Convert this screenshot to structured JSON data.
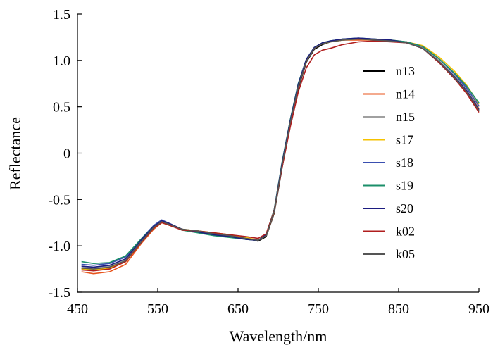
{
  "chart_data": {
    "type": "line",
    "title": "",
    "xlabel": "Wavelength/nm",
    "ylabel": "Reflectance",
    "xlim": [
      450,
      950
    ],
    "ylim": [
      -1.5,
      1.5
    ],
    "xticks": [
      450,
      550,
      650,
      750,
      850,
      950
    ],
    "yticks": [
      -1.5,
      -1.0,
      -0.5,
      0,
      0.5,
      1.0,
      1.5
    ],
    "xtick_labels": [
      "450",
      "550",
      "650",
      "750",
      "850",
      "950"
    ],
    "ytick_labels": [
      "-1.5",
      "-1.0",
      "-0.5",
      "0",
      "0.5",
      "1.0",
      "1.5"
    ],
    "grid": false,
    "legend_position": "right",
    "x": [
      455,
      470,
      490,
      510,
      530,
      545,
      555,
      565,
      580,
      600,
      620,
      640,
      660,
      675,
      685,
      695,
      705,
      715,
      725,
      735,
      745,
      755,
      765,
      780,
      800,
      820,
      840,
      860,
      880,
      900,
      920,
      935,
      950
    ],
    "series": [
      {
        "name": "n13",
        "color": "#000000",
        "values": [
          -1.24,
          -1.25,
          -1.23,
          -1.16,
          -0.95,
          -0.8,
          -0.74,
          -0.77,
          -0.82,
          -0.84,
          -0.87,
          -0.88,
          -0.92,
          -0.95,
          -0.9,
          -0.65,
          -0.15,
          0.3,
          0.7,
          0.98,
          1.12,
          1.17,
          1.2,
          1.22,
          1.23,
          1.22,
          1.21,
          1.19,
          1.13,
          0.98,
          0.8,
          0.66,
          0.47
        ]
      },
      {
        "name": "n14",
        "color": "#e8541c",
        "values": [
          -1.28,
          -1.3,
          -1.28,
          -1.2,
          -0.97,
          -0.82,
          -0.75,
          -0.78,
          -0.82,
          -0.84,
          -0.86,
          -0.88,
          -0.91,
          -0.94,
          -0.89,
          -0.64,
          -0.13,
          0.32,
          0.72,
          0.99,
          1.13,
          1.18,
          1.2,
          1.22,
          1.22,
          1.22,
          1.21,
          1.19,
          1.14,
          1.0,
          0.82,
          0.67,
          0.48
        ]
      },
      {
        "name": "n15",
        "color": "#a0a0a0",
        "values": [
          -1.23,
          -1.24,
          -1.22,
          -1.15,
          -0.94,
          -0.8,
          -0.74,
          -0.77,
          -0.82,
          -0.84,
          -0.87,
          -0.89,
          -0.92,
          -0.94,
          -0.89,
          -0.63,
          -0.12,
          0.33,
          0.73,
          1.0,
          1.14,
          1.18,
          1.2,
          1.22,
          1.23,
          1.22,
          1.21,
          1.19,
          1.14,
          1.0,
          0.83,
          0.69,
          0.5
        ]
      },
      {
        "name": "s17",
        "color": "#f5c200",
        "values": [
          -1.25,
          -1.26,
          -1.24,
          -1.17,
          -0.96,
          -0.81,
          -0.75,
          -0.78,
          -0.82,
          -0.84,
          -0.86,
          -0.88,
          -0.91,
          -0.94,
          -0.88,
          -0.62,
          -0.1,
          0.35,
          0.74,
          1.0,
          1.14,
          1.18,
          1.2,
          1.22,
          1.23,
          1.22,
          1.22,
          1.2,
          1.16,
          1.04,
          0.88,
          0.73,
          0.53
        ]
      },
      {
        "name": "s18",
        "color": "#3a4fb0",
        "values": [
          -1.2,
          -1.21,
          -1.19,
          -1.12,
          -0.92,
          -0.78,
          -0.72,
          -0.76,
          -0.82,
          -0.85,
          -0.88,
          -0.9,
          -0.93,
          -0.94,
          -0.88,
          -0.62,
          -0.1,
          0.35,
          0.75,
          1.01,
          1.14,
          1.18,
          1.21,
          1.23,
          1.24,
          1.23,
          1.22,
          1.2,
          1.15,
          1.02,
          0.85,
          0.7,
          0.51
        ]
      },
      {
        "name": "s19",
        "color": "#1b8f6a",
        "values": [
          -1.17,
          -1.19,
          -1.18,
          -1.11,
          -0.92,
          -0.79,
          -0.73,
          -0.77,
          -0.83,
          -0.86,
          -0.89,
          -0.91,
          -0.93,
          -0.94,
          -0.88,
          -0.61,
          -0.09,
          0.36,
          0.75,
          1.01,
          1.14,
          1.19,
          1.21,
          1.23,
          1.24,
          1.23,
          1.22,
          1.2,
          1.15,
          1.02,
          0.86,
          0.72,
          0.54
        ]
      },
      {
        "name": "s20",
        "color": "#1c1c80",
        "values": [
          -1.22,
          -1.23,
          -1.21,
          -1.14,
          -0.93,
          -0.79,
          -0.73,
          -0.76,
          -0.82,
          -0.85,
          -0.88,
          -0.9,
          -0.93,
          -0.94,
          -0.88,
          -0.62,
          -0.1,
          0.35,
          0.74,
          1.01,
          1.14,
          1.19,
          1.21,
          1.23,
          1.24,
          1.23,
          1.22,
          1.19,
          1.13,
          0.99,
          0.82,
          0.67,
          0.47
        ]
      },
      {
        "name": "k02",
        "color": "#b01e1e",
        "values": [
          -1.26,
          -1.27,
          -1.25,
          -1.17,
          -0.96,
          -0.81,
          -0.75,
          -0.78,
          -0.83,
          -0.84,
          -0.86,
          -0.88,
          -0.9,
          -0.92,
          -0.87,
          -0.62,
          -0.15,
          0.28,
          0.66,
          0.92,
          1.06,
          1.11,
          1.13,
          1.17,
          1.2,
          1.21,
          1.2,
          1.19,
          1.13,
          0.98,
          0.8,
          0.64,
          0.44
        ]
      },
      {
        "name": "k05",
        "color": "#555555",
        "values": [
          -1.24,
          -1.25,
          -1.23,
          -1.16,
          -0.95,
          -0.8,
          -0.74,
          -0.77,
          -0.82,
          -0.84,
          -0.87,
          -0.89,
          -0.92,
          -0.94,
          -0.89,
          -0.63,
          -0.12,
          0.33,
          0.72,
          0.99,
          1.13,
          1.18,
          1.2,
          1.22,
          1.23,
          1.22,
          1.21,
          1.19,
          1.13,
          0.99,
          0.81,
          0.66,
          0.46
        ]
      }
    ]
  }
}
